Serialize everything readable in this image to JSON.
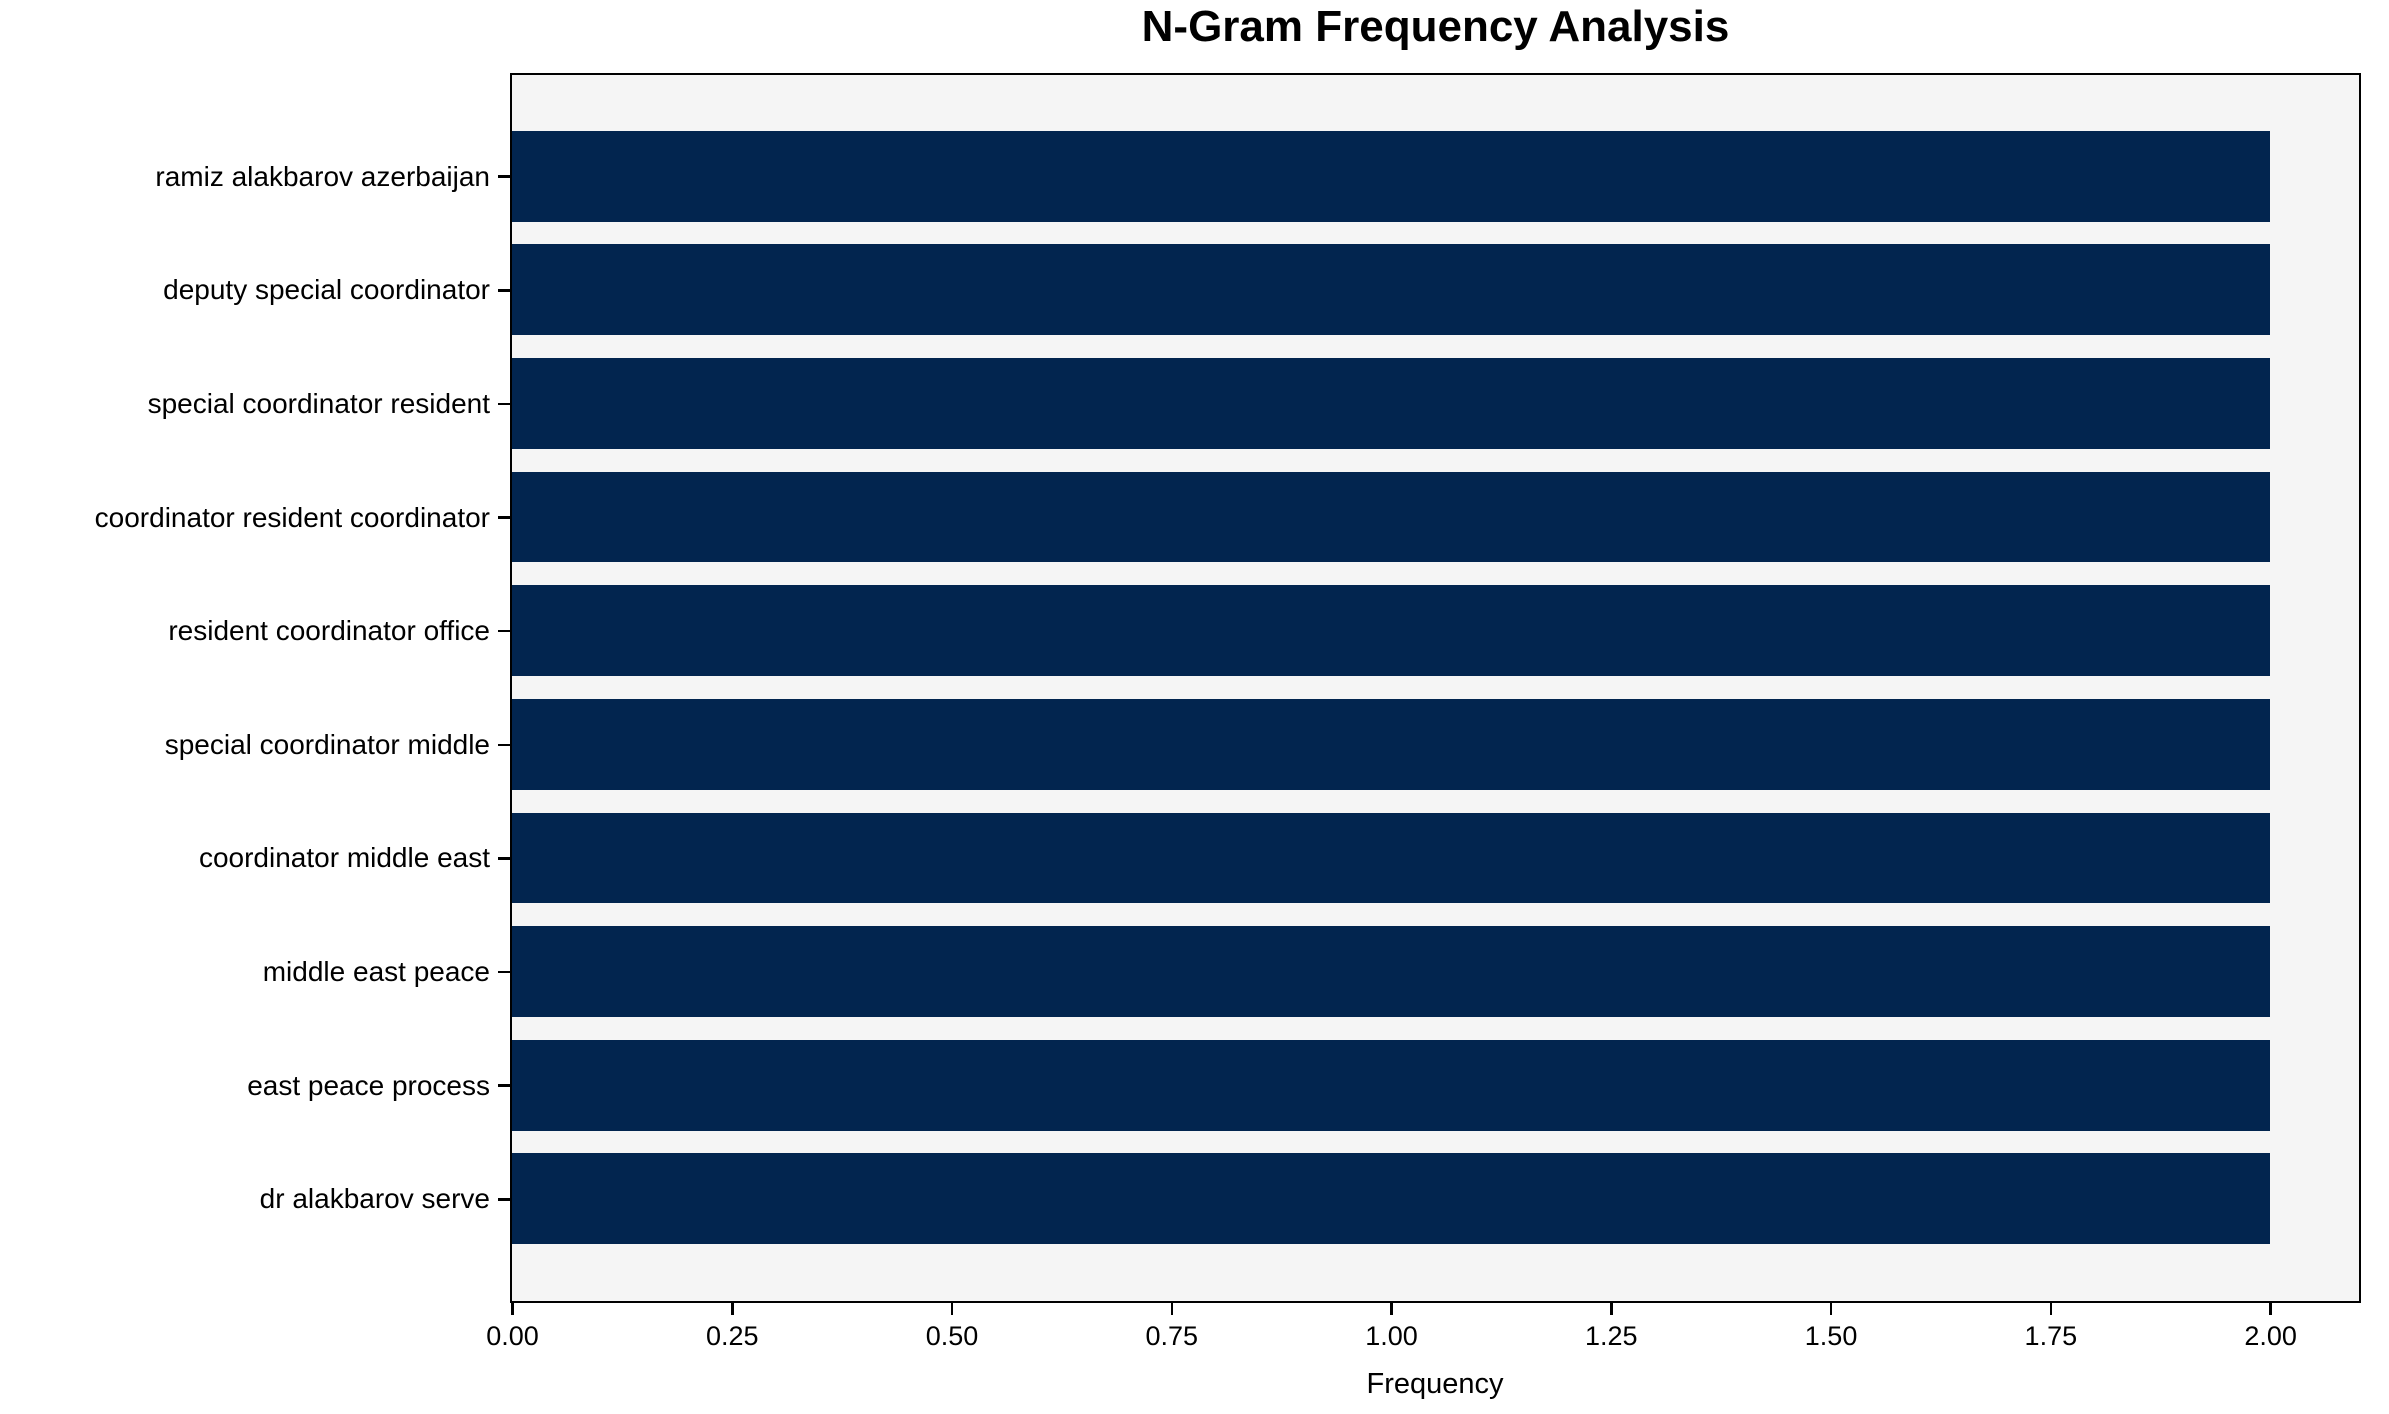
{
  "chart_data": {
    "type": "bar",
    "orientation": "horizontal",
    "title": "N-Gram Frequency Analysis",
    "categories": [
      "ramiz alakbarov azerbaijan",
      "deputy special coordinator",
      "special coordinator resident",
      "coordinator resident coordinator",
      "resident coordinator office",
      "special coordinator middle",
      "coordinator middle east",
      "middle east peace",
      "east peace process",
      "dr alakbarov serve"
    ],
    "values": [
      2,
      2,
      2,
      2,
      2,
      2,
      2,
      2,
      2,
      2
    ],
    "xlabel": "Frequency",
    "ylabel": "",
    "xlim": [
      0,
      2.1
    ],
    "xticks": [
      0,
      0.25,
      0.5,
      0.75,
      1,
      1.25,
      1.5,
      1.75,
      2
    ],
    "xtick_labels": [
      "0.00",
      "0.25",
      "0.50",
      "0.75",
      "1.00",
      "1.25",
      "1.50",
      "1.75",
      "2.00"
    ],
    "bar_relative_height": 0.8,
    "grid": false,
    "legend": null,
    "colors": {
      "bar": "#02254f",
      "plot_background": "#f5f5f5",
      "figure_background": "#ffffff",
      "spine": "#000000",
      "text": "#000000"
    }
  }
}
